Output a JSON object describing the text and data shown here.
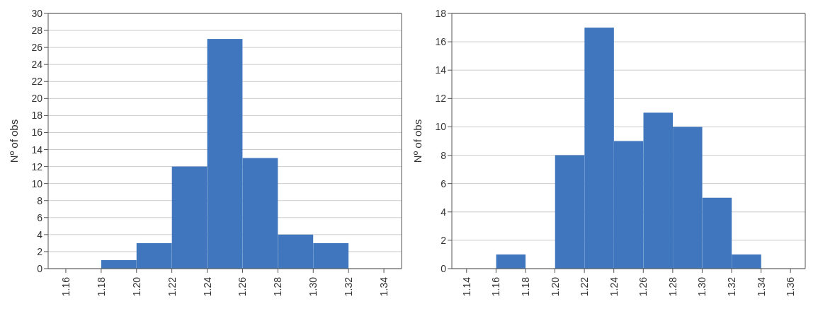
{
  "chart_data": [
    {
      "type": "histogram",
      "ylabel": "Nº of obs",
      "color": "#3f76bd",
      "bins": [
        1.18,
        1.2,
        1.22,
        1.24,
        1.26,
        1.28,
        1.3,
        1.32
      ],
      "values": [
        1,
        3,
        12,
        27,
        13,
        4,
        3
      ],
      "xlim": [
        1.15,
        1.35
      ],
      "xticks": [
        {
          "value": 1.16,
          "label": "1.16"
        },
        {
          "value": 1.18,
          "label": "1.18"
        },
        {
          "value": 1.2,
          "label": "1.20"
        },
        {
          "value": 1.22,
          "label": "1.22"
        },
        {
          "value": 1.24,
          "label": "1.24"
        },
        {
          "value": 1.26,
          "label": "1.26"
        },
        {
          "value": 1.28,
          "label": "1.28"
        },
        {
          "value": 1.3,
          "label": "1.30"
        },
        {
          "value": 1.32,
          "label": "1.32"
        },
        {
          "value": 1.34,
          "label": "1.34"
        }
      ],
      "ylim": [
        0,
        30
      ],
      "yticks": [
        0,
        2,
        4,
        6,
        8,
        10,
        12,
        14,
        16,
        18,
        20,
        22,
        24,
        26,
        28,
        30
      ],
      "grid": "y"
    },
    {
      "type": "histogram",
      "ylabel": "Nº of obs",
      "color": "#3f76bd",
      "bins": [
        1.16,
        1.18,
        1.2,
        1.22,
        1.24,
        1.26,
        1.28,
        1.3,
        1.32,
        1.34
      ],
      "values": [
        1,
        0,
        8,
        17,
        9,
        11,
        10,
        5,
        1
      ],
      "xlim": [
        1.13,
        1.37
      ],
      "xticks": [
        {
          "value": 1.14,
          "label": "1.14"
        },
        {
          "value": 1.16,
          "label": "1.16"
        },
        {
          "value": 1.18,
          "label": "1.18"
        },
        {
          "value": 1.2,
          "label": "1.20"
        },
        {
          "value": 1.22,
          "label": "1.22"
        },
        {
          "value": 1.24,
          "label": "1.24"
        },
        {
          "value": 1.26,
          "label": "1.26"
        },
        {
          "value": 1.28,
          "label": "1.28"
        },
        {
          "value": 1.3,
          "label": "1.30"
        },
        {
          "value": 1.32,
          "label": "1.32"
        },
        {
          "value": 1.34,
          "label": "1.34"
        },
        {
          "value": 1.36,
          "label": "1.36"
        }
      ],
      "ylim": [
        0,
        18
      ],
      "yticks": [
        0,
        2,
        4,
        6,
        8,
        10,
        12,
        14,
        16,
        18
      ],
      "grid": "y"
    }
  ]
}
